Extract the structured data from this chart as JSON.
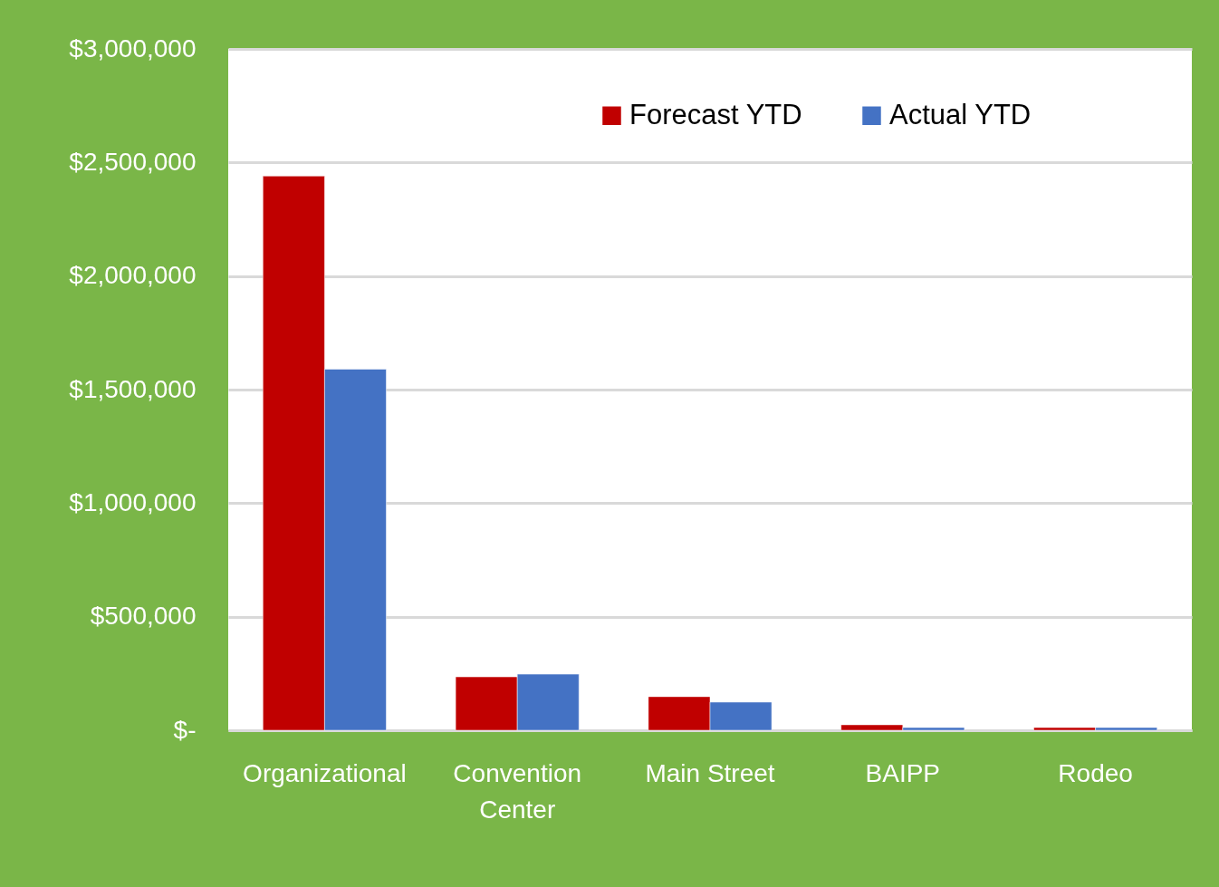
{
  "chart_data": {
    "type": "bar",
    "categories": [
      "Organizational",
      "Convention Center",
      "Main Street",
      "BAIPP",
      "Rodeo"
    ],
    "series": [
      {
        "name": "Forecast YTD",
        "color": "#c00000",
        "values": [
          2440000,
          235000,
          148000,
          24000,
          12000
        ]
      },
      {
        "name": "Actual YTD",
        "color": "#4472c4",
        "values": [
          1590000,
          247000,
          124000,
          12000,
          12000
        ]
      }
    ],
    "ylim": [
      0,
      3000000
    ],
    "yticks": [
      {
        "value": 0,
        "label": "$-"
      },
      {
        "value": 500000,
        "label": "$500,000"
      },
      {
        "value": 1000000,
        "label": "$1,000,000"
      },
      {
        "value": 1500000,
        "label": "$1,500,000"
      },
      {
        "value": 2000000,
        "label": "$2,000,000"
      },
      {
        "value": 2500000,
        "label": "$2,500,000"
      },
      {
        "value": 3000000,
        "label": "$3,000,000"
      }
    ],
    "grid": "y",
    "legend": "top"
  }
}
